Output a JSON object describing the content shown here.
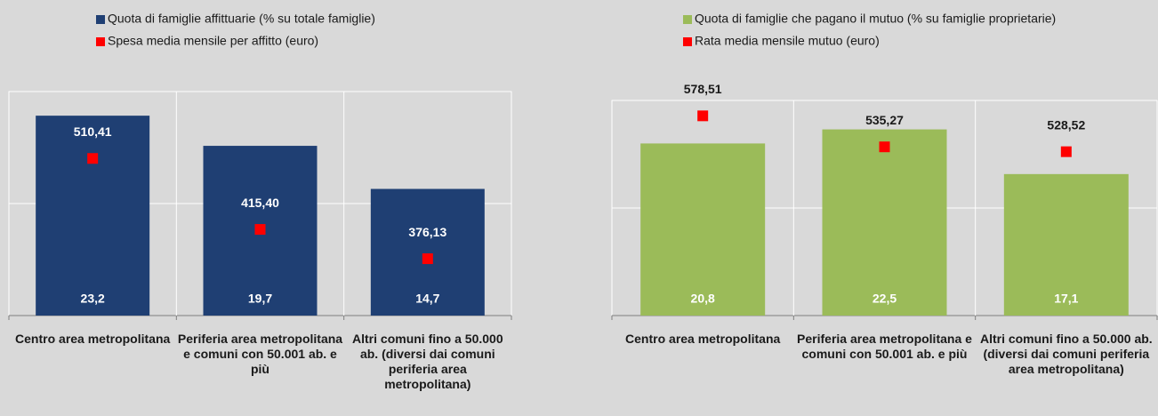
{
  "chart_data": [
    {
      "type": "bar",
      "categories": [
        "Centro area metropolitana",
        "Periferia area metropolitana e comuni con 50.001 ab. e più",
        "Altri comuni fino a 50.000 ab. (diversi dai comuni periferia area metropolitana)"
      ],
      "series": [
        {
          "name": "Quota di famiglie affittuarie (% su totale famiglie)",
          "color": "#1f3f73",
          "type": "bar",
          "values": [
            23.2,
            19.7,
            14.7
          ],
          "value_labels": [
            "23,2",
            "19,7",
            "14,7"
          ]
        },
        {
          "name": "Spesa media mensile per affitto (euro)",
          "color": "#ff0000",
          "type": "scatter",
          "axis": "y2",
          "values": [
            510.41,
            415.4,
            376.13
          ],
          "value_labels": [
            "510,41",
            "415,40",
            "376,13"
          ]
        }
      ],
      "ylim": [
        0,
        26
      ],
      "yticks": [
        0,
        13,
        26
      ],
      "y2lim": [
        300,
        600
      ],
      "grid": true
    },
    {
      "type": "bar",
      "categories": [
        "Centro area metropolitana",
        "Periferia area metropolitana e comuni con 50.001 ab. e più",
        "Altri comuni fino a 50.000 ab. (diversi dai comuni periferia area metropolitana)"
      ],
      "series": [
        {
          "name": "Quota di famiglie che pagano il mutuo (% su famiglie proprietarie)",
          "color": "#9bbb59",
          "type": "bar",
          "values": [
            20.8,
            22.5,
            17.1
          ],
          "value_labels": [
            "20,8",
            "22,5",
            "17,1"
          ]
        },
        {
          "name": "Rata media mensile mutuo (euro)",
          "color": "#ff0000",
          "type": "scatter",
          "axis": "y2",
          "values": [
            578.51,
            535.27,
            528.52
          ],
          "value_labels": [
            "578,51",
            "535,27",
            "528,52"
          ]
        }
      ],
      "ylim": [
        0,
        26
      ],
      "yticks": [
        0,
        13,
        26
      ],
      "y2lim": [
        300,
        600
      ],
      "grid": true
    }
  ]
}
